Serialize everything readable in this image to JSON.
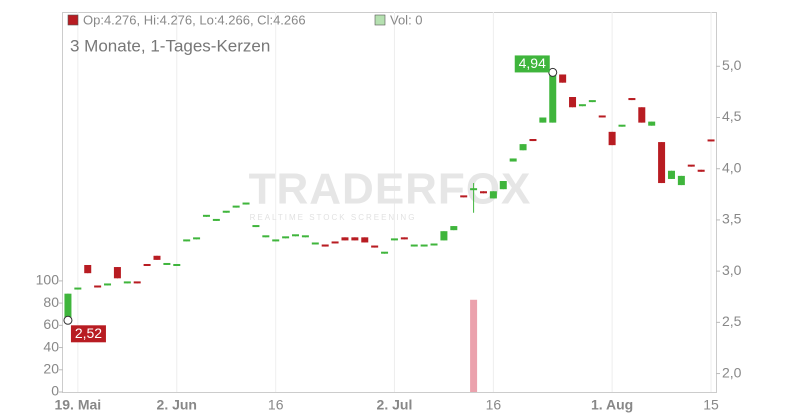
{
  "chart_data": {
    "type": "candlestick",
    "subtitle": "3 Monate, 1-Tages-Kerzen",
    "legend_ohlc": "Op:4.276, Hi:4.276, Lo:4.266, Cl:4.266",
    "legend_volume": "Vol: 0",
    "watermark": "TRADERFOX",
    "watermark_tagline": "REALTIME STOCK SCREENING",
    "up_color": "#3fb53c",
    "down_color": "#b81c22",
    "volume_color": "#eba2ad",
    "grid": "x",
    "categories": [
      null,
      "19. Mai",
      null,
      null,
      null,
      null,
      null,
      null,
      null,
      null,
      null,
      "2. Jun",
      null,
      null,
      null,
      null,
      null,
      null,
      null,
      null,
      null,
      "16",
      null,
      null,
      null,
      null,
      null,
      null,
      null,
      null,
      null,
      null,
      null,
      "2. Jul",
      null,
      null,
      null,
      null,
      null,
      null,
      null,
      null,
      null,
      "16",
      null,
      null,
      null,
      null,
      null,
      null,
      null,
      null,
      null,
      null,
      null,
      "1. Aug",
      null,
      null,
      null,
      null,
      null,
      null,
      null,
      null,
      null,
      "15"
    ],
    "open": [
      2.54,
      2.82,
      3.06,
      2.85,
      2.86,
      3.04,
      2.88,
      2.89,
      3.06,
      3.15,
      3.06,
      3.05,
      3.29,
      3.31,
      3.53,
      3.49,
      3.57,
      3.62,
      3.65,
      3.43,
      3.33,
      3.29,
      3.32,
      3.34,
      3.33,
      3.26,
      3.26,
      3.28,
      3.33,
      3.33,
      3.33,
      3.25,
      3.17,
      3.3,
      3.33,
      3.24,
      3.24,
      3.25,
      3.3,
      3.4,
      3.73,
      3.79,
      3.78,
      3.71,
      3.8,
      4.07,
      4.18,
      4.29,
      4.45,
      4.45,
      4.92,
      4.7,
      4.61,
      4.65,
      4.51,
      4.36,
      4.41,
      4.69,
      4.6,
      4.42,
      4.26,
      3.9,
      3.84,
      4.03,
      3.99,
      4.276
    ],
    "high": [
      2.78,
      2.83,
      3.06,
      2.85,
      2.87,
      3.04,
      2.89,
      2.89,
      3.06,
      3.15,
      3.07,
      3.06,
      3.3,
      3.32,
      3.54,
      3.5,
      3.58,
      3.63,
      3.66,
      3.44,
      3.34,
      3.3,
      3.33,
      3.35,
      3.34,
      3.27,
      3.26,
      3.28,
      3.33,
      3.33,
      3.33,
      3.25,
      3.18,
      3.31,
      3.33,
      3.25,
      3.25,
      3.26,
      3.39,
      3.44,
      3.73,
      3.86,
      3.78,
      3.78,
      3.88,
      4.1,
      4.24,
      4.29,
      4.5,
      4.94,
      4.92,
      4.7,
      4.62,
      4.66,
      4.51,
      4.36,
      4.42,
      4.69,
      4.6,
      4.46,
      4.26,
      3.98,
      3.93,
      4.03,
      3.99,
      4.276
    ],
    "low": [
      2.52,
      2.82,
      2.98,
      2.84,
      2.86,
      2.93,
      2.88,
      2.88,
      3.05,
      3.11,
      3.06,
      3.05,
      3.29,
      3.31,
      3.53,
      3.49,
      3.57,
      3.62,
      3.65,
      3.43,
      3.33,
      3.29,
      3.32,
      3.34,
      3.33,
      3.26,
      3.24,
      3.27,
      3.3,
      3.3,
      3.28,
      3.23,
      3.17,
      3.3,
      3.31,
      3.24,
      3.24,
      3.25,
      3.3,
      3.4,
      3.72,
      3.57,
      3.76,
      3.71,
      3.8,
      4.07,
      4.18,
      4.27,
      4.45,
      4.45,
      4.84,
      4.6,
      4.61,
      4.65,
      4.5,
      4.23,
      4.41,
      4.67,
      4.45,
      4.42,
      3.86,
      3.9,
      3.84,
      4.02,
      3.97,
      4.266
    ],
    "close": [
      2.78,
      2.83,
      2.98,
      2.84,
      2.87,
      2.93,
      2.89,
      2.88,
      3.05,
      3.11,
      3.07,
      3.06,
      3.3,
      3.32,
      3.54,
      3.5,
      3.58,
      3.63,
      3.66,
      3.44,
      3.34,
      3.3,
      3.33,
      3.35,
      3.34,
      3.27,
      3.24,
      3.27,
      3.3,
      3.3,
      3.28,
      3.23,
      3.18,
      3.31,
      3.31,
      3.25,
      3.25,
      3.26,
      3.39,
      3.44,
      3.72,
      3.8,
      3.76,
      3.78,
      3.88,
      4.1,
      4.24,
      4.27,
      4.5,
      4.93,
      4.84,
      4.6,
      4.62,
      4.66,
      4.5,
      4.23,
      4.42,
      4.67,
      4.45,
      4.46,
      3.86,
      3.98,
      3.93,
      4.02,
      3.97,
      4.266
    ],
    "volume": [
      0,
      0,
      0,
      0,
      0,
      0,
      0,
      0,
      0,
      0,
      0,
      0,
      0,
      0,
      0,
      0,
      0,
      0,
      0,
      0,
      0,
      0,
      0,
      0,
      0,
      0,
      0,
      0,
      0,
      0,
      0,
      0,
      0,
      0,
      0,
      0,
      0,
      0,
      0,
      0,
      0,
      83,
      0,
      0,
      0,
      0,
      0,
      0,
      0,
      0,
      0,
      0,
      0,
      0,
      0,
      0,
      0,
      0,
      0,
      0,
      0,
      0,
      0,
      0,
      0,
      0
    ],
    "max_label": {
      "value": 4.94,
      "label": "4,94"
    },
    "min_label": {
      "value": 2.52,
      "label": "2,52"
    },
    "ylim": [
      1.82,
      5.53
    ],
    "yticks": [
      {
        "value": 2,
        "label": "2,0"
      },
      {
        "value": 2.5,
        "label": "2,5"
      },
      {
        "value": 3,
        "label": "3,0"
      },
      {
        "value": 3.5,
        "label": "3,5"
      },
      {
        "value": 4,
        "label": "4,0"
      },
      {
        "value": 4.5,
        "label": "4,5"
      },
      {
        "value": 5,
        "label": "5,0"
      }
    ],
    "y2lim": [
      0,
      342
    ],
    "y2ticks": [
      0,
      20,
      40,
      60,
      80,
      100
    ]
  }
}
